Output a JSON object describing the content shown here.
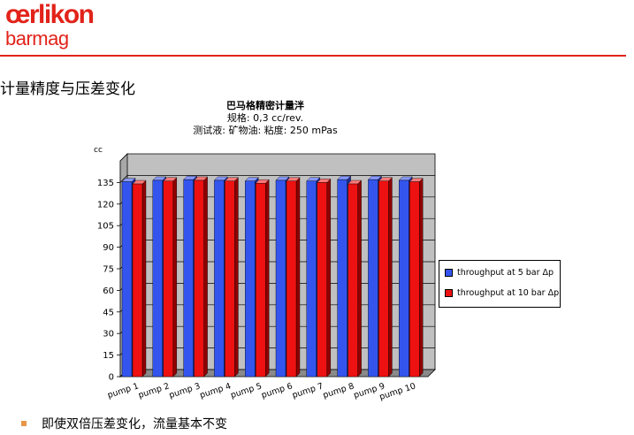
{
  "logo": {
    "main": "œrlikon",
    "sub": "barmag"
  },
  "heading": "计量精度与压差变化",
  "bullet": "即使双倍压差变化，流量基本不变",
  "colors": {
    "accent": "#e2231a",
    "series1": "#3355ee",
    "series2": "#ee1111",
    "bullet": "#e8964a"
  },
  "chart_data": {
    "type": "bar",
    "title": "巴马格精密计量泮",
    "subtitle": [
      "规格: 0,3 cc/rev.",
      "测试液: 矿物油: 粘度: 250 mPas"
    ],
    "ylabel": "cc",
    "xlabel": "",
    "ylim": [
      0,
      150
    ],
    "yticks": [
      0,
      15,
      30,
      45,
      60,
      75,
      90,
      105,
      120,
      135
    ],
    "grid": true,
    "legend_position": "right",
    "categories": [
      "pump 1",
      "pump 2",
      "pump 3",
      "pump 4",
      "pump 5",
      "pump 6",
      "pump 7",
      "pump 8",
      "pump 9",
      "pump 10"
    ],
    "series": [
      {
        "name": "throughput at  5 bar Δp",
        "values": [
          135.5,
          136.5,
          137,
          136.5,
          136,
          136.5,
          136,
          137,
          137,
          136.5
        ]
      },
      {
        "name": "throughput at 10 bar Δp",
        "values": [
          134,
          136,
          136.5,
          136,
          134.5,
          136,
          135,
          134,
          136,
          135.5
        ]
      }
    ]
  }
}
